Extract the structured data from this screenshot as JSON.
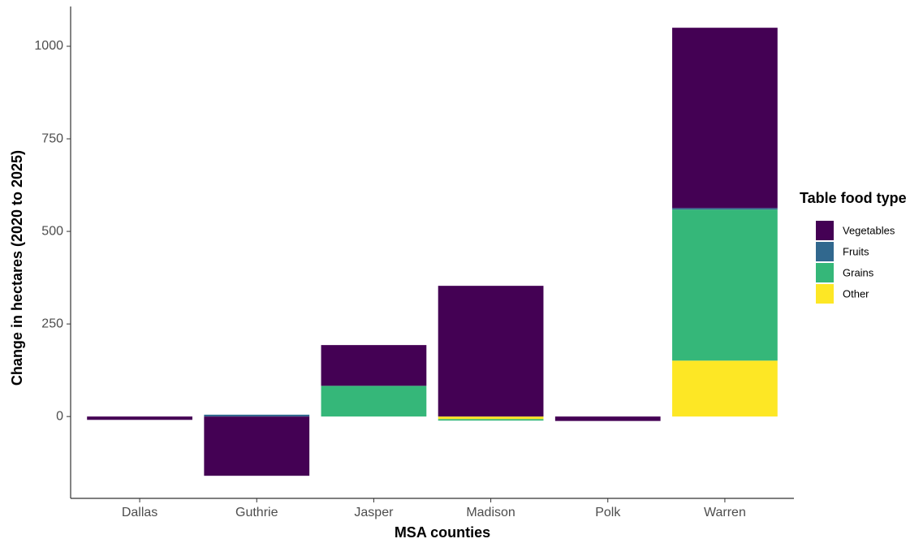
{
  "chart_data": {
    "type": "stacked_bar",
    "x_label": "MSA counties",
    "y_label": "Change in hectares (2020 to 2025)",
    "legend_title": "Table food type",
    "legend_position": "right",
    "categories": [
      "Dallas",
      "Guthrie",
      "Jasper",
      "Madison",
      "Polk",
      "Warren"
    ],
    "series": [
      {
        "name": "Vegetables",
        "color": "#440154",
        "values": [
          -9,
          -160,
          110,
          353,
          -12,
          487
        ]
      },
      {
        "name": "Fruits",
        "color": "#31688E",
        "values": [
          0,
          5,
          0,
          0,
          0,
          4
        ]
      },
      {
        "name": "Grains",
        "color": "#35B779",
        "values": [
          0,
          0,
          83,
          -4,
          0,
          408
        ]
      },
      {
        "name": "Other",
        "color": "#FDE725",
        "values": [
          0,
          0,
          0,
          -7,
          0,
          151
        ]
      }
    ],
    "ylim": [
      -221,
      1103
    ],
    "yticks": [
      0,
      250,
      500,
      750,
      {
        "value": 1000,
        "label": "1000"
      }
    ],
    "grid": false
  }
}
